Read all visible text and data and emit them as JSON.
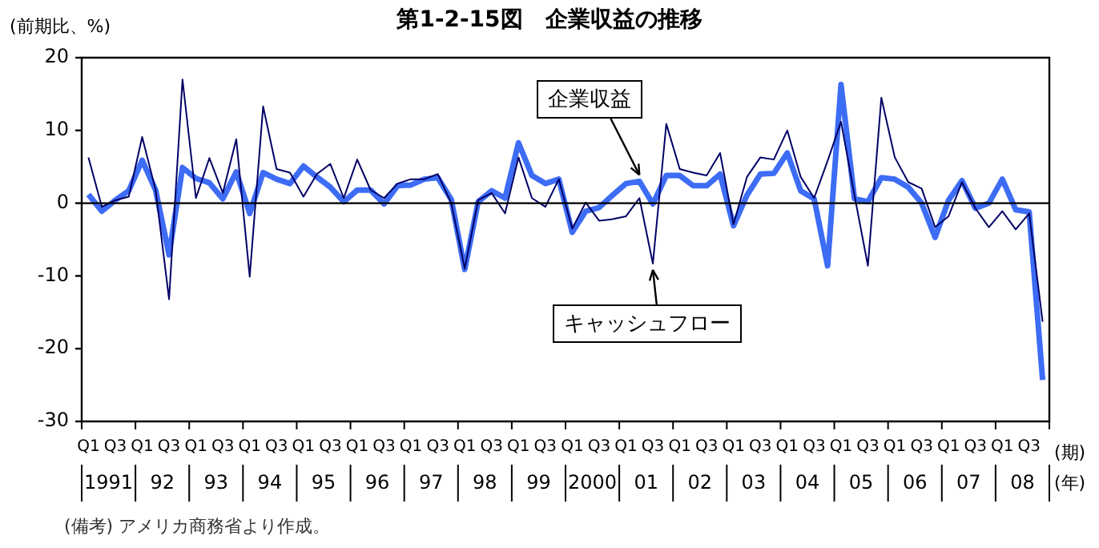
{
  "chart_data": {
    "type": "line",
    "title": "第1-2-15図　企業収益の推移",
    "ylabel": "(前期比、%)",
    "xlabel": "(期)\n(年)",
    "categories": [
      "Q1",
      null,
      "Q3",
      null,
      "Q1",
      null,
      "Q3",
      null,
      "Q1",
      null,
      "Q3",
      null,
      "Q1",
      null,
      "Q3",
      null,
      "Q1",
      null,
      "Q3",
      null,
      "Q1",
      null,
      "Q3",
      null,
      "Q1",
      null,
      "Q3",
      null,
      "Q1",
      null,
      "Q3",
      null,
      "Q1",
      null,
      "Q3",
      null,
      "Q1",
      null,
      "Q3",
      null,
      "Q1",
      null,
      "Q3",
      null,
      "Q1",
      null,
      "Q3",
      null,
      "Q1",
      null,
      "Q3",
      null,
      "Q1",
      null,
      "Q3",
      null,
      "Q1",
      null,
      "Q3",
      null,
      "Q1",
      null,
      "Q3",
      null,
      "Q1",
      null,
      "Q3",
      null,
      "Q1",
      null,
      "Q3",
      null
    ],
    "series": [
      {
        "name": "キャッシュフロー",
        "color": "#000066",
        "values": [
          6.3,
          -0.5,
          0.4,
          0.9,
          9.1,
          1.8,
          -13.2,
          17.0,
          0.7,
          6.2,
          1.4,
          8.8,
          -10.1,
          13.3,
          4.7,
          4.2,
          0.9,
          4.0,
          5.4,
          0.7,
          6.0,
          1.8,
          0.7,
          2.7,
          3.3,
          3.3,
          4.0,
          0,
          -9.0,
          0.4,
          1.4,
          -1.4,
          6.3,
          0.7,
          -0.5,
          3.3,
          -3.5,
          0.1,
          -2.4,
          -2.2,
          -1.8,
          0.7,
          -8.3,
          10.9,
          4.7,
          4.2,
          3.8,
          6.9,
          -2.9,
          3.6,
          6.3,
          6.0,
          10.0,
          3.6,
          0.7,
          5.8,
          11.2,
          1.1,
          -8.6,
          14.5,
          6.3,
          2.9,
          2.0,
          -3.3,
          -1.8,
          2.9,
          -0.7,
          -3.3,
          -1.1,
          -3.6,
          -1.4,
          -16.3
        ]
      },
      {
        "name": "企業収益",
        "color": "#3d6cf5",
        "values": [
          1.2,
          -1.1,
          0.4,
          1.7,
          5.9,
          1.8,
          -7.1,
          4.9,
          3.4,
          2.8,
          0.6,
          4.3,
          -1.4,
          4.2,
          3.3,
          2.7,
          5.1,
          3.6,
          2.2,
          0.2,
          1.8,
          1.8,
          -0.1,
          2.4,
          2.5,
          3.3,
          3.5,
          0.5,
          -9.1,
          0.2,
          1.7,
          0.7,
          8.3,
          3.8,
          2.7,
          3.3,
          -4.0,
          -1.1,
          -0.6,
          1.1,
          2.7,
          3.0,
          -0.1,
          3.8,
          3.8,
          2.4,
          2.4,
          4.0,
          -3.1,
          1.1,
          4.0,
          4.1,
          6.9,
          1.7,
          0.6,
          -8.6,
          16.3,
          0.6,
          0.2,
          3.5,
          3.3,
          2.2,
          0,
          -4.7,
          0.4,
          3.1,
          -0.7,
          0,
          3.3,
          -0.9,
          -1.2,
          -24.3
        ]
      }
    ],
    "ylim": [
      -30,
      20
    ],
    "yticks": [
      -30,
      -20,
      -10,
      0,
      10,
      20
    ],
    "grid": false,
    "ref_lines": [
      {
        "axis": "y",
        "value": 0,
        "color": "#000000"
      }
    ],
    "legend": false,
    "marker": "none",
    "line_style": "solid",
    "annotations": [
      "(備考) アメリカ商務省より作成。",
      "1991",
      "92",
      "93",
      "94",
      "95",
      "96",
      "97",
      "98",
      "99",
      "2000",
      "01",
      "02",
      "03",
      "04",
      "05",
      "06",
      "07",
      "08"
    ]
  }
}
